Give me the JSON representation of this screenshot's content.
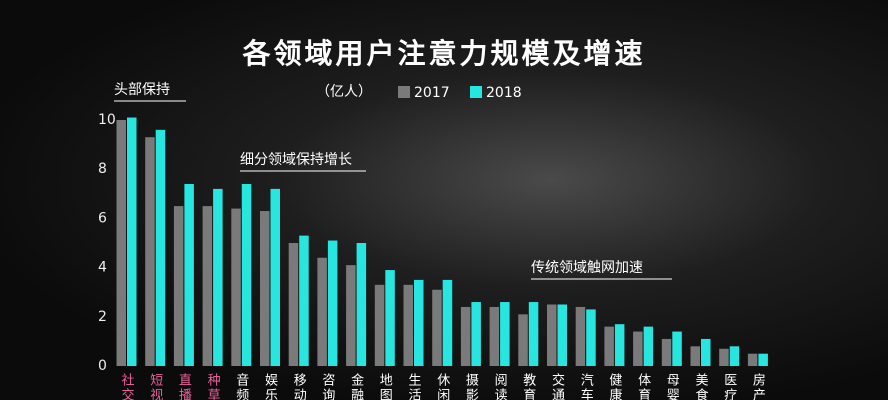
{
  "chart_data": {
    "type": "bar",
    "title": "各领域用户注意力规模及增速",
    "y_label": "（亿人）",
    "annotations": [
      "头部保持",
      "细分领域保持增长",
      "传统领域触网加速"
    ],
    "categories": [
      "社交",
      "短视",
      "直播",
      "种草",
      "音频",
      "娱乐",
      "移动",
      "咨询",
      "金融",
      "地图",
      "生活",
      "休闲",
      "摄影",
      "阅读",
      "教育",
      "交通",
      "汽车",
      "健康",
      "体育",
      "母婴",
      "美食",
      "医疗",
      "房产"
    ],
    "category_colors": [
      "#e8609a",
      "#e8609a",
      "#e8609a",
      "#e8609a",
      "#ffffff",
      "#ffffff",
      "#ffffff",
      "#ffffff",
      "#ffffff",
      "#ffffff",
      "#ffffff",
      "#ffffff",
      "#ffffff",
      "#ffffff",
      "#ffffff",
      "#ffffff",
      "#ffffff",
      "#ffffff",
      "#ffffff",
      "#ffffff",
      "#ffffff",
      "#ffffff",
      "#ffffff"
    ],
    "series": [
      {
        "name": "2017",
        "color": "#7a7a7a",
        "values": [
          10.0,
          9.3,
          6.5,
          6.5,
          6.4,
          6.3,
          5.0,
          4.4,
          4.1,
          3.3,
          3.3,
          3.1,
          2.4,
          2.4,
          2.1,
          2.5,
          2.4,
          1.6,
          1.4,
          1.1,
          0.8,
          0.7,
          0.5
        ]
      },
      {
        "name": "2018",
        "color": "#27e6e0",
        "values": [
          10.1,
          9.6,
          7.4,
          7.2,
          7.4,
          7.2,
          5.3,
          5.1,
          5.0,
          3.9,
          3.5,
          3.5,
          2.6,
          2.6,
          2.6,
          2.5,
          2.3,
          1.7,
          1.6,
          1.4,
          1.1,
          0.8,
          0.5
        ]
      }
    ],
    "ylim": [
      0,
      10
    ],
    "yticks": [
      0,
      2,
      4,
      6,
      8,
      10
    ],
    "grid": false
  }
}
